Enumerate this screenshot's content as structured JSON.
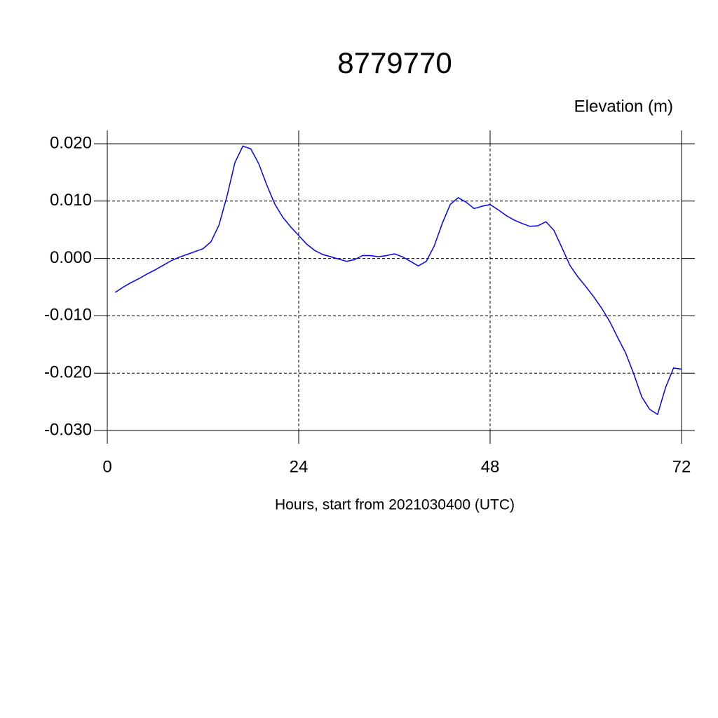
{
  "chart_data": {
    "type": "line",
    "title": "8779770",
    "subtitle": "Elevation (m)",
    "x_label": "Hours, start from 2021030400 (UTC)",
    "x": [
      1,
      2,
      3,
      4,
      5,
      6,
      7,
      8,
      9,
      10,
      11,
      12,
      13,
      14,
      15,
      16,
      17,
      18,
      19,
      20,
      21,
      22,
      23,
      24,
      25,
      26,
      27,
      28,
      29,
      30,
      31,
      32,
      33,
      34,
      35,
      36,
      37,
      38,
      39,
      40,
      41,
      42,
      43,
      44,
      45,
      46,
      47,
      48,
      49,
      50,
      51,
      52,
      53,
      54,
      55,
      56,
      57,
      58,
      59,
      60,
      61,
      62,
      63,
      64,
      65,
      66,
      67,
      68,
      69,
      70,
      71,
      72
    ],
    "series": [
      {
        "color": "#0000ff",
        "values": [
          -0.0059,
          -0.005,
          -0.0042,
          -0.0035,
          -0.0027,
          -0.002,
          -0.0012,
          -0.0004,
          0.0002,
          0.0007,
          0.0012,
          0.0017,
          0.0029,
          0.0058,
          0.0108,
          0.0167,
          0.0196,
          0.0191,
          0.0165,
          0.0128,
          0.0095,
          0.0072,
          0.0055,
          0.004,
          0.0025,
          0.0014,
          0.0007,
          0.0003,
          -0.0001,
          -0.0005,
          -0.0002,
          0.0005,
          0.0005,
          0.0003,
          0.0005,
          0.0008,
          0.0003,
          -0.0005,
          -0.0013,
          -0.0005,
          0.0022,
          0.0061,
          0.0094,
          0.0106,
          0.0098,
          0.0087,
          0.0091,
          0.0094,
          0.0085,
          0.0075,
          0.0067,
          0.0061,
          0.0056,
          0.0057,
          0.0064,
          0.0049,
          0.0019,
          -0.0012,
          -0.0032,
          -0.0049,
          -0.0067,
          -0.0087,
          -0.011,
          -0.0138,
          -0.0165,
          -0.0201,
          -0.0241,
          -0.0263,
          -0.0272,
          -0.0225,
          -0.0191,
          -0.0193
        ]
      }
    ],
    "xlim": [
      0,
      72
    ],
    "xticks": [
      0,
      24,
      48,
      72
    ],
    "ylim": [
      -0.03,
      0.02
    ],
    "yticks": [
      {
        "value": -0.03,
        "label": "-0.030"
      },
      {
        "value": -0.02,
        "label": "-0.020"
      },
      {
        "value": -0.01,
        "label": "-0.010"
      },
      {
        "value": 0,
        "label": "0.000"
      },
      {
        "value": 0.01,
        "label": "0.010"
      },
      {
        "value": 0.02,
        "label": "0.020"
      }
    ],
    "grid": true
  }
}
